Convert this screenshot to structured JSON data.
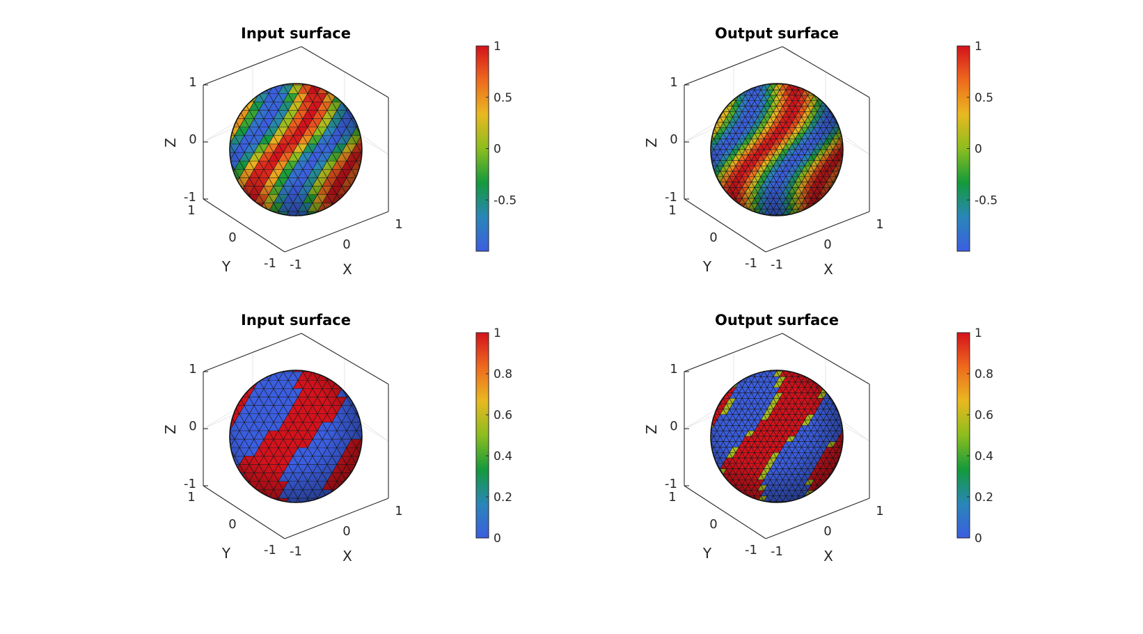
{
  "figure": {
    "background": "#ffffff",
    "colormap": [
      "#3b5ee0",
      "#2a86b8",
      "#139a3c",
      "#8cbd1e",
      "#e9b820",
      "#ee6a1e",
      "#d4121c"
    ]
  },
  "chart_data": [
    {
      "type": "surface",
      "title": "Input surface",
      "xlabel": "X",
      "ylabel": "Y",
      "zlabel": "Z",
      "xticks": [
        "-1",
        "0",
        "1"
      ],
      "yticks": [
        "-1",
        "0",
        "1"
      ],
      "zticks": [
        "-1",
        "0",
        "1"
      ],
      "xlim": [
        -1,
        1
      ],
      "ylim": [
        -1,
        1
      ],
      "zlim": [
        -1,
        1
      ],
      "surface": "unit sphere (triangulated mesh)",
      "field": "cos(2*pi*x) striped bands",
      "colorbar": {
        "ticks": [
          "1",
          "0.5",
          "0",
          "-0.5"
        ],
        "tick_values": [
          1,
          0.5,
          0,
          -0.5
        ],
        "range": [
          -1,
          1
        ]
      }
    },
    {
      "type": "surface",
      "title": "Output surface",
      "xlabel": "X",
      "ylabel": "Y",
      "zlabel": "Z",
      "xticks": [
        "-1",
        "0",
        "1"
      ],
      "yticks": [
        "-1",
        "0",
        "1"
      ],
      "zticks": [
        "-1",
        "0",
        "1"
      ],
      "xlim": [
        -1,
        1
      ],
      "ylim": [
        -1,
        1
      ],
      "zlim": [
        -1,
        1
      ],
      "surface": "unit sphere (refined triangulated mesh)",
      "field": "cos(2*pi*x) striped bands, interpolated",
      "colorbar": {
        "ticks": [
          "1",
          "0.5",
          "0",
          "-0.5"
        ],
        "tick_values": [
          1,
          0.5,
          0,
          -0.5
        ],
        "range": [
          -1,
          1
        ]
      }
    },
    {
      "type": "surface",
      "title": "Input surface",
      "xlabel": "X",
      "ylabel": "Y",
      "zlabel": "Z",
      "xticks": [
        "-1",
        "0",
        "1"
      ],
      "yticks": [
        "-1",
        "0",
        "1"
      ],
      "zticks": [
        "-1",
        "0",
        "1"
      ],
      "xlim": [
        -1,
        1
      ],
      "ylim": [
        -1,
        1
      ],
      "zlim": [
        -1,
        1
      ],
      "surface": "unit sphere (triangulated mesh)",
      "field": "binary labels (0 / 1)",
      "colorbar": {
        "ticks": [
          "1",
          "0.8",
          "0.6",
          "0.4",
          "0.2",
          "0"
        ],
        "tick_values": [
          1,
          0.8,
          0.6,
          0.4,
          0.2,
          0
        ],
        "range": [
          0,
          1
        ]
      }
    },
    {
      "type": "surface",
      "title": "Output surface",
      "xlabel": "X",
      "ylabel": "Y",
      "zlabel": "Z",
      "xticks": [
        "-1",
        "0",
        "1"
      ],
      "yticks": [
        "-1",
        "0",
        "1"
      ],
      "zticks": [
        "-1",
        "0",
        "1"
      ],
      "xlim": [
        -1,
        1
      ],
      "ylim": [
        -1,
        1
      ],
      "zlim": [
        -1,
        1
      ],
      "surface": "unit sphere (refined triangulated mesh)",
      "field": "binary labels (0 / 1), interpolated",
      "colorbar": {
        "ticks": [
          "1",
          "0.8",
          "0.6",
          "0.4",
          "0.2",
          "0"
        ],
        "tick_values": [
          1,
          0.8,
          0.6,
          0.4,
          0.2,
          0
        ],
        "range": [
          0,
          1
        ]
      }
    }
  ]
}
